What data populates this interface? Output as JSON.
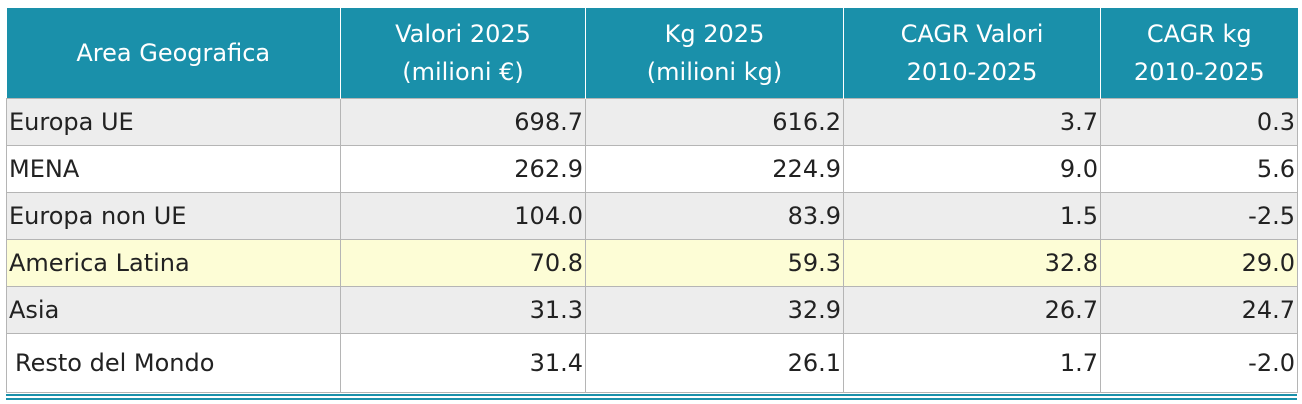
{
  "table": {
    "header": [
      [
        "Area Geografica"
      ],
      [
        "Valori 2025",
        "(milioni €)"
      ],
      [
        "Kg 2025",
        "(milioni kg)"
      ],
      [
        "CAGR Valori",
        "2010-2025"
      ],
      [
        "CAGR kg",
        "2010-2025"
      ]
    ],
    "rows": [
      [
        "Europa UE",
        "698.7",
        "616.2",
        "3.7",
        "0.3"
      ],
      [
        "MENA",
        "262.9",
        "224.9",
        "9.0",
        "5.6"
      ],
      [
        "Europa non UE",
        "104.0",
        "83.9",
        "1.5",
        "-2.5"
      ],
      [
        "America Latina",
        "70.8",
        "59.3",
        "32.8",
        "29.0"
      ],
      [
        "Asia",
        "31.3",
        "32.9",
        "26.7",
        "24.7"
      ],
      [
        "Resto del Mondo",
        "31.4",
        "26.1",
        "1.7",
        "-2.0"
      ]
    ]
  }
}
